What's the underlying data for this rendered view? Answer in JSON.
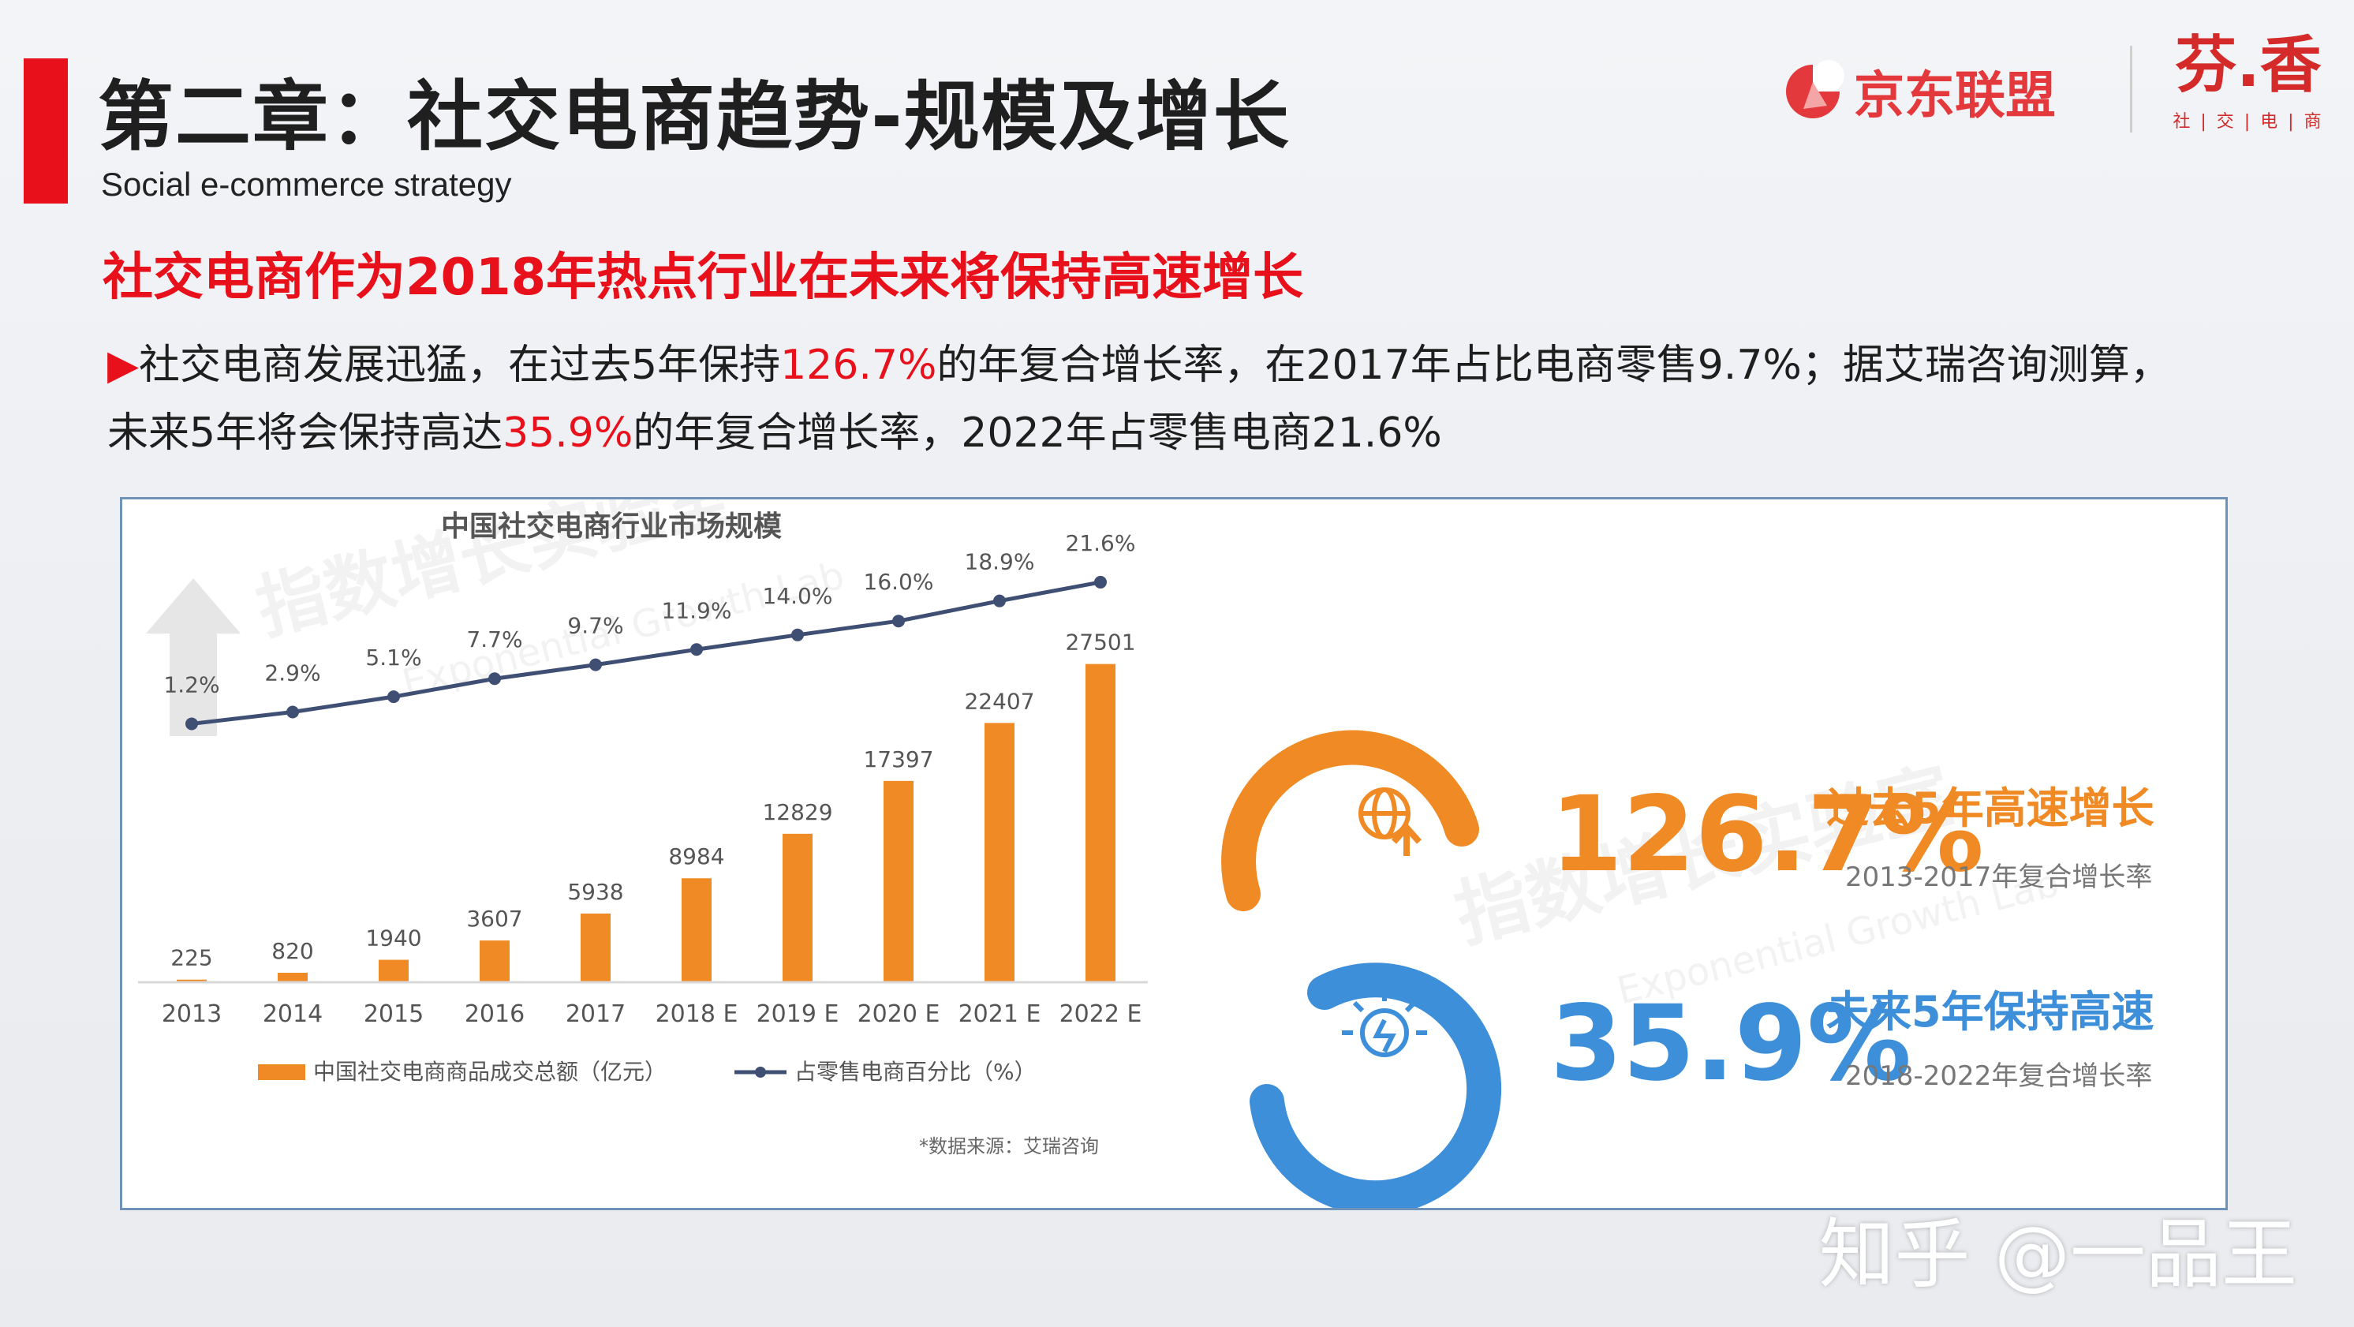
{
  "header": {
    "title": "第二章：社交电商趋势-规模及增长",
    "subtitle": "Social e-commerce strategy",
    "logo_jd": "京东联盟",
    "logo_fx": "芬.香",
    "logo_fx_sub": "社 | 交 | 电 | 商"
  },
  "headline": "社交电商作为2018年热点行业在未来将保持高速增长",
  "body": {
    "bullet": "▶",
    "p1": "社交电商发展迅猛，在过去5年保持",
    "h1": "126.7%",
    "p2": "的年复合增长率，在2017年占比电商零售9.7%；据艾瑞咨询测算，未来5年将会保持高达",
    "h2": "35.9%",
    "p3": "的年复合增长率，2022年占零售电商21.6%"
  },
  "chart_data": {
    "type": "bar",
    "title": "中国社交电商行业市场规模",
    "categories": [
      "2013",
      "2014",
      "2015",
      "2016",
      "2017",
      "2018 E",
      "2019 E",
      "2020 E",
      "2021 E",
      "2022 E"
    ],
    "series": [
      {
        "name": "中国社交电商商品成交总额（亿元）",
        "type": "bar",
        "values": [
          225,
          820,
          1940,
          3607,
          5938,
          8984,
          12829,
          17397,
          22407,
          27501
        ]
      },
      {
        "name": "占零售电商百分比（%）",
        "type": "line",
        "values": [
          1.2,
          2.9,
          5.1,
          7.7,
          9.7,
          11.9,
          14.0,
          16.0,
          18.9,
          21.6
        ]
      }
    ],
    "line_labels": [
      "1.2%",
      "2.9%",
      "5.1%",
      "7.7%",
      "9.7%",
      "11.9%",
      "14.0%",
      "16.0%",
      "18.9%",
      "21.6%"
    ],
    "source": "*数据来源：艾瑞咨询",
    "legend": "bottom",
    "bar_color": "#f08a24",
    "line_color": "#3f4f73"
  },
  "stats": [
    {
      "value": "126.7%",
      "label": "过去5年高速增长",
      "sublabel": "2013-2017年复合增长率",
      "color": "#f08a24",
      "icon": "globe-arrow-icon"
    },
    {
      "value": "35.9%",
      "label": "未来5年保持高速",
      "sublabel": "2018-2022年复合增长率",
      "color": "#3d8fd9",
      "icon": "lightbulb-icon"
    }
  ],
  "watermarks": {
    "panel": "指数增长实验室",
    "panel_en": "Exponential Growth Lab",
    "corner": "知乎 @一品王"
  }
}
